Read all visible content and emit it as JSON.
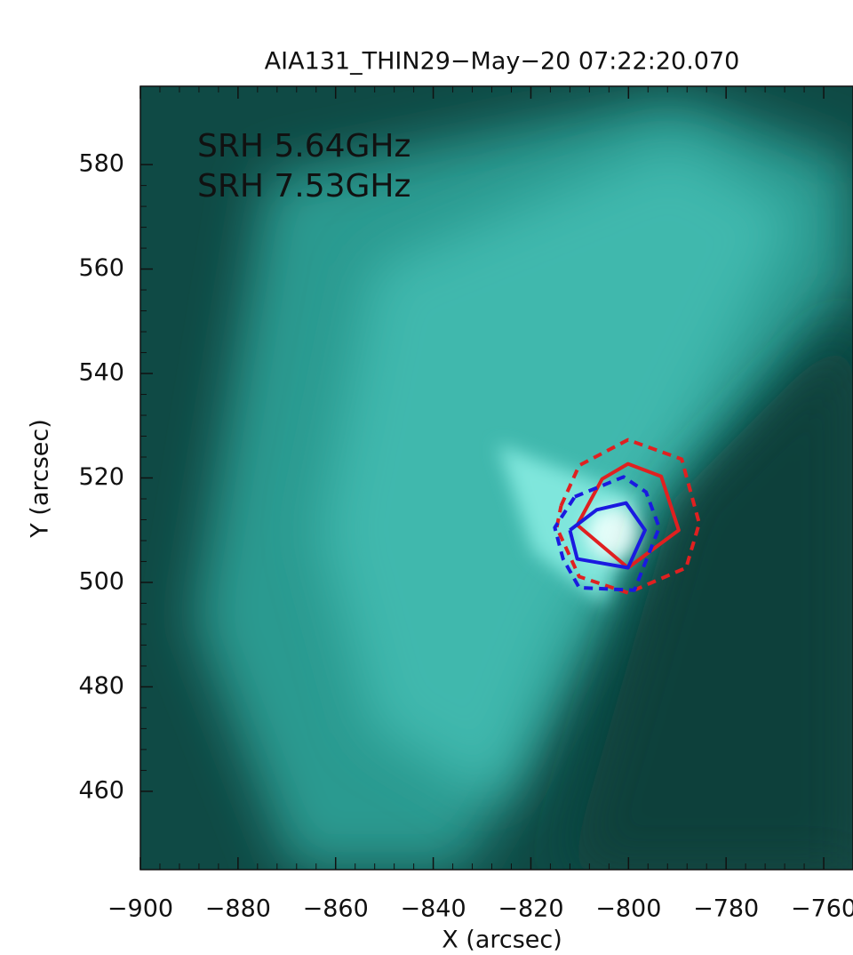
{
  "chart_data": {
    "type": "image-contour",
    "title": "AIA131_THIN29−May−20  07:22:20.070",
    "x_label": "X (arcsec)",
    "y_label": "Y (arcsec)",
    "xlim": [
      -900,
      -754
    ],
    "ylim": [
      445,
      595
    ],
    "xticks": [
      {
        "value": -900,
        "label": "−900"
      },
      {
        "value": -880,
        "label": "−880"
      },
      {
        "value": -860,
        "label": "−860"
      },
      {
        "value": -840,
        "label": "−840"
      },
      {
        "value": -820,
        "label": "−820"
      },
      {
        "value": -800,
        "label": "−800"
      },
      {
        "value": -780,
        "label": "−780"
      },
      {
        "value": -760,
        "label": "−760"
      }
    ],
    "yticks": [
      460,
      480,
      500,
      520,
      540,
      560,
      580
    ],
    "series": [
      {
        "name": "SRH 5.64GHz",
        "color": "#e02020",
        "contours": [
          {
            "linestyle": "solid",
            "x": [
              -810.5,
              -805.4,
              -800.1,
              -793.3,
              -789.7,
              -800.1,
              -810.5
            ],
            "y": [
              511.0,
              519.8,
              522.7,
              520.3,
              510.0,
              502.8,
              511.0
            ]
          },
          {
            "linestyle": "dashed",
            "x": [
              -813.8,
              -810.1,
              -800.1,
              -789.1,
              -785.5,
              -788.2,
              -800.1,
              -810.1,
              -814.7,
              -813.8
            ],
            "y": [
              514.7,
              522.4,
              527.3,
              523.6,
              511.3,
              502.8,
              498.0,
              501.1,
              510.5,
              514.7
            ]
          }
        ]
      },
      {
        "name": "SRH 7.53GHz",
        "color": "#1a1ae0",
        "contours": [
          {
            "linestyle": "solid",
            "x": [
              -812.0,
              -806.5,
              -800.5,
              -796.6,
              -800.1,
              -810.5,
              -812.0
            ],
            "y": [
              510.0,
              513.9,
              515.2,
              510.0,
              502.8,
              504.5,
              510.0
            ]
          },
          {
            "linestyle": "dashed",
            "x": [
              -811.0,
              -801.0,
              -796.4,
              -793.7,
              -798.8,
              -810.1,
              -813.4,
              -815.1,
              -811.0
            ],
            "y": [
              516.4,
              520.2,
              517.3,
              510.5,
              498.5,
              499.0,
              504.5,
              510.5,
              516.4
            ]
          }
        ]
      }
    ]
  }
}
